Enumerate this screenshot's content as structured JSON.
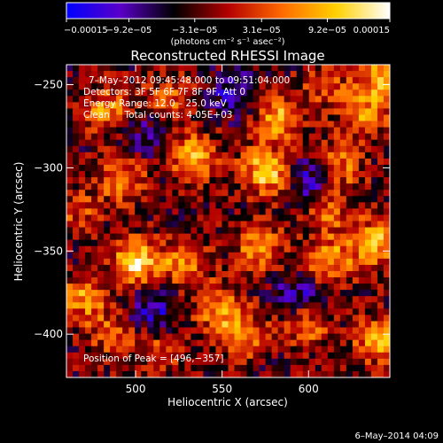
{
  "chart_data": {
    "type": "heatmap",
    "title": "Reconstructed RHESSI Image",
    "xlabel": "Heliocentric X (arcsec)",
    "ylabel": "Heliocentric Y (arcsec)",
    "xlim": [
      460,
      647
    ],
    "ylim": [
      -426,
      -238
    ],
    "x_ticks": [
      500,
      550,
      600
    ],
    "x_tick_labels": [
      "500",
      "550",
      "600"
    ],
    "y_ticks": [
      -250,
      -300,
      -350,
      -400
    ],
    "y_tick_labels": [
      "−250",
      "−300",
      "−350",
      "−400"
    ],
    "colorbar": {
      "min": -0.00015,
      "max": 0.00015,
      "tick_values": [
        -0.00015,
        -9.2e-05,
        -3.1e-05,
        3.1e-05,
        9.2e-05,
        0.00015
      ],
      "tick_labels": [
        "−0.00015",
        "−9.2e−05",
        "−3.1e−05",
        "3.1e−05",
        "9.2e−05",
        "0.00015"
      ],
      "unit_label": "(photons cm⁻² s⁻¹ asec⁻²)",
      "colors": [
        "#0000ff",
        "#5a00c8",
        "#000000",
        "#b40000",
        "#ff6a00",
        "#ffd000",
        "#ffffff"
      ]
    },
    "annotations": {
      "time_range": "7–May–2012 09:45:48.000 to 09:51:04.000",
      "detectors": "Detectors: 3F 5F 6F 7F 8F 9F, Att 0",
      "energy_range": "Energy Range: 12.0 – 25.0 keV",
      "method": "Clean     Total counts: 4.05E+03",
      "peak": "Position of Peak = [496,−357]"
    },
    "sources": [
      {
        "x": 500,
        "y": -357,
        "amp": 0.00015
      },
      {
        "x": 575,
        "y": -302,
        "amp": 0.00014
      },
      {
        "x": 533,
        "y": -293,
        "amp": 0.00012
      },
      {
        "x": 583,
        "y": -270,
        "amp": 0.00011
      },
      {
        "x": 528,
        "y": -357,
        "amp": 0.0001
      },
      {
        "x": 572,
        "y": -348,
        "amp": 0.0001
      },
      {
        "x": 483,
        "y": -265,
        "amp": 9e-05
      },
      {
        "x": 492,
        "y": -307,
        "amp": 9e-05
      },
      {
        "x": 643,
        "y": -245,
        "amp": 0.00012
      },
      {
        "x": 632,
        "y": -268,
        "amp": 0.0001
      },
      {
        "x": 638,
        "y": -345,
        "amp": 0.00012
      },
      {
        "x": 617,
        "y": -300,
        "amp": 0.0001
      },
      {
        "x": 612,
        "y": -327,
        "amp": 7e-05
      },
      {
        "x": 612,
        "y": -356,
        "amp": 0.00011
      },
      {
        "x": 548,
        "y": -385,
        "amp": 0.0001
      },
      {
        "x": 562,
        "y": -400,
        "amp": 9e-05
      },
      {
        "x": 598,
        "y": -395,
        "amp": 8e-05
      },
      {
        "x": 640,
        "y": -404,
        "amp": 0.00011
      },
      {
        "x": 470,
        "y": -378,
        "amp": 0.0001
      },
      {
        "x": 486,
        "y": -400,
        "amp": 7e-05
      },
      {
        "x": 514,
        "y": -410,
        "amp": 6e-05
      },
      {
        "x": 520,
        "y": -258,
        "amp": 7e-05
      },
      {
        "x": 610,
        "y": -250,
        "amp": 6e-05
      },
      {
        "x": 467,
        "y": -327,
        "amp": 6e-05
      },
      {
        "x": 555,
        "y": -255,
        "amp": -7e-05
      },
      {
        "x": 510,
        "y": -385,
        "amp": -8e-05
      },
      {
        "x": 604,
        "y": -307,
        "amp": -9e-05
      },
      {
        "x": 508,
        "y": -280,
        "amp": -5e-05
      },
      {
        "x": 595,
        "y": -375,
        "amp": -7e-05
      }
    ]
  },
  "footer": {
    "date": "6–May–2014 04:09"
  }
}
